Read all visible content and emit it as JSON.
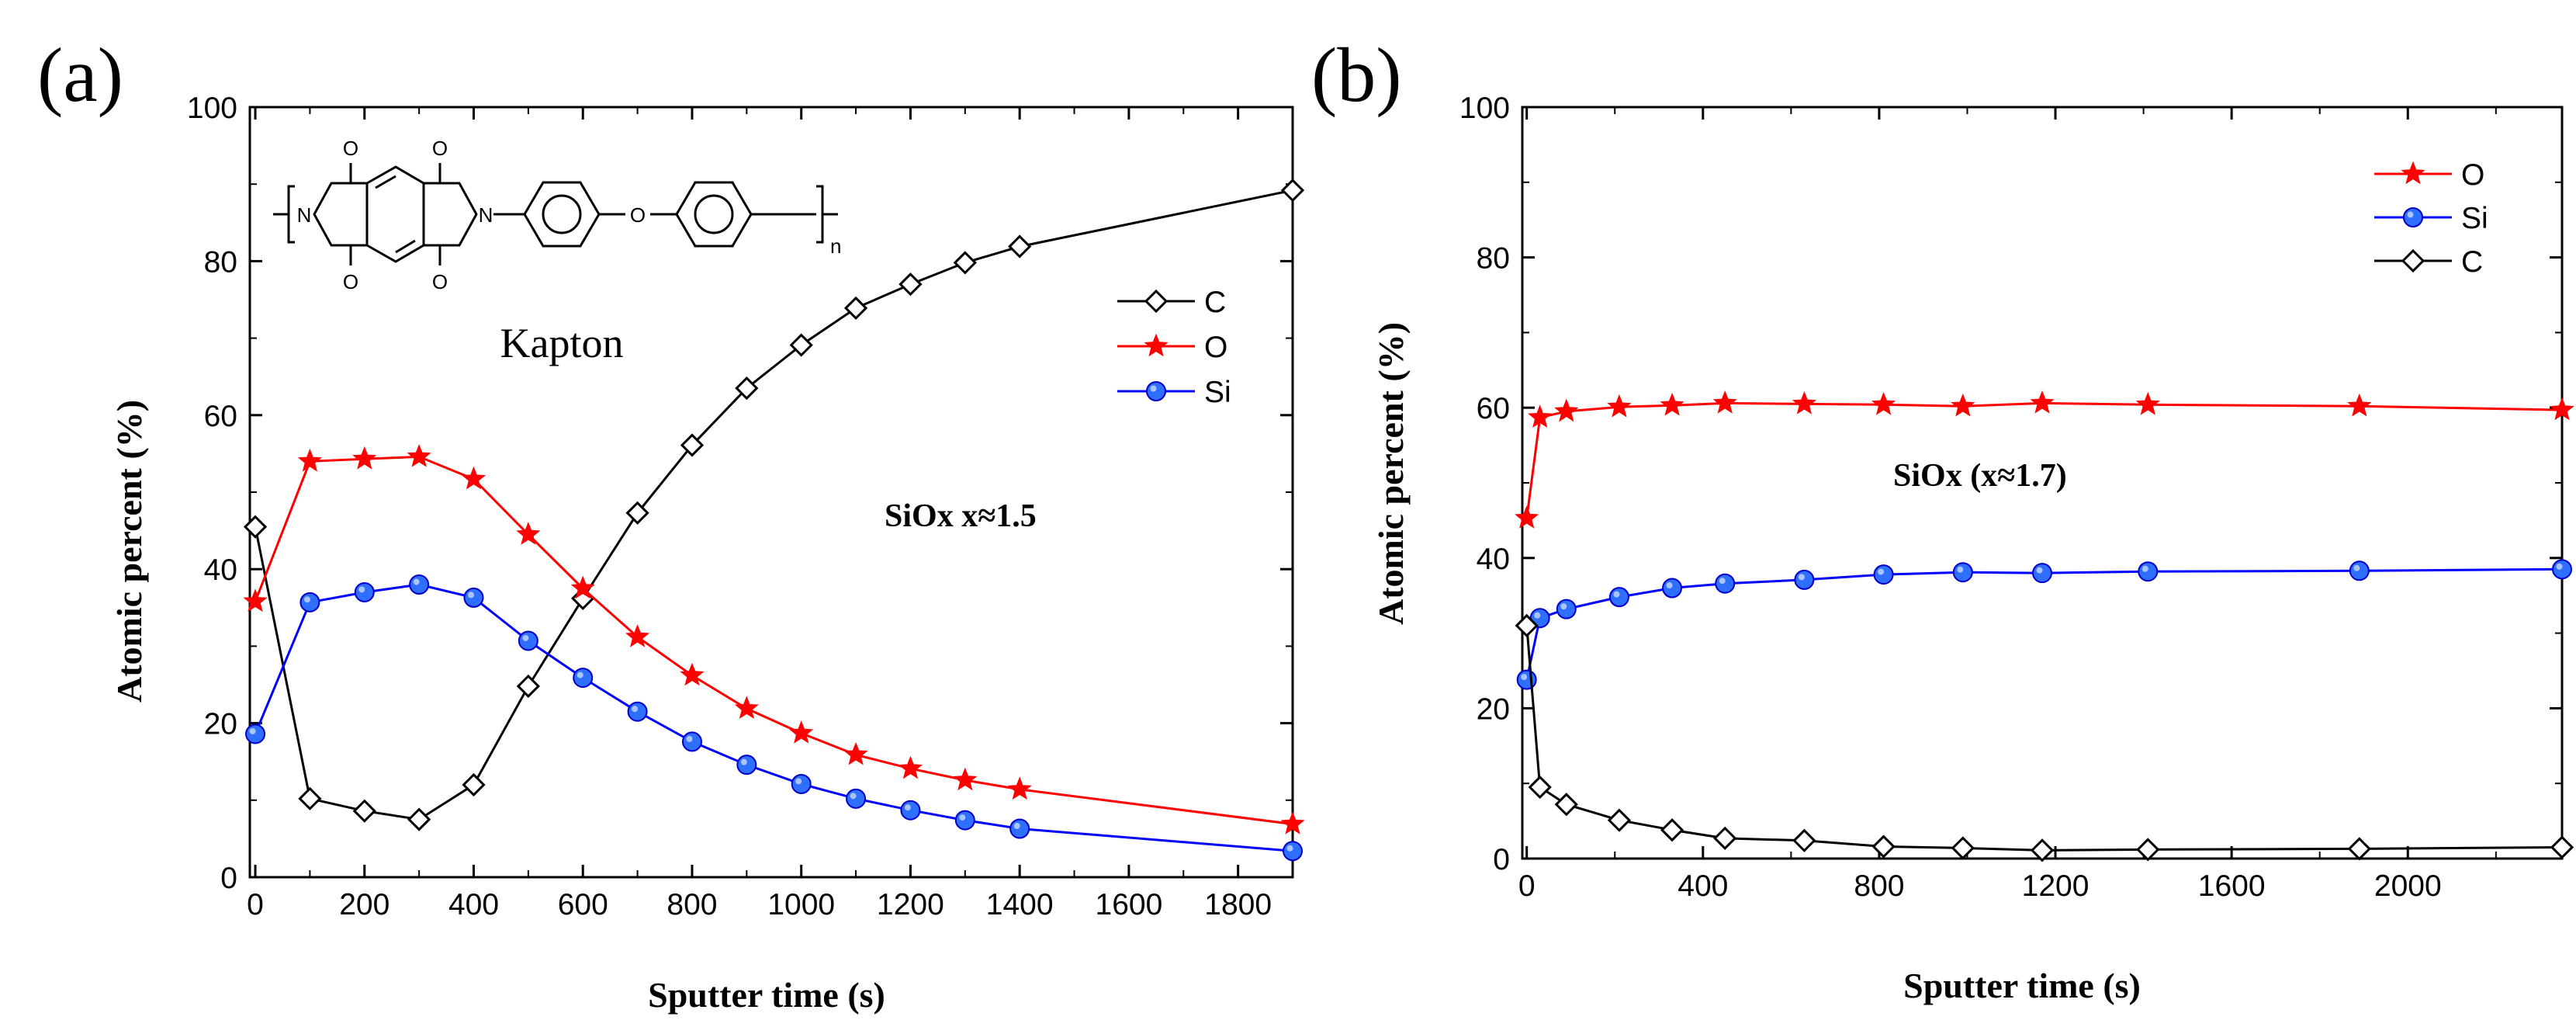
{
  "colors": {
    "O": "#ff0000",
    "Si": "#0000ff",
    "C": "#000000",
    "si_marker_fill": "#2f6fff"
  },
  "chart_data": [
    {
      "type": "line",
      "panel_label": "(a)",
      "xlabel": "Sputter time (s)",
      "ylabel": "Atomic percent (%)",
      "xlim": [
        -10,
        1900
      ],
      "ylim": [
        0,
        100
      ],
      "xticks": [
        "0",
        "200",
        "400",
        "600",
        "800",
        "1000",
        "1200",
        "1400",
        "1600",
        "1800"
      ],
      "yticks": [
        "0",
        "20",
        "40",
        "60",
        "80",
        "100"
      ],
      "annotation": "SiOx x≈1.5",
      "legend_position": "right-middle",
      "inset": {
        "label": "Kapton",
        "subscript": "n",
        "atoms": [
          "O",
          "O",
          "O",
          "O",
          "N",
          "N",
          "O"
        ]
      },
      "series": [
        {
          "name": "C",
          "marker": "diamond",
          "x": [
            0,
            100,
            200,
            300,
            400,
            500,
            600,
            700,
            800,
            900,
            1000,
            1100,
            1200,
            1300,
            1400,
            1900
          ],
          "y": [
            45.5,
            10.2,
            8.6,
            7.5,
            12.0,
            24.8,
            36.2,
            47.3,
            56.1,
            63.5,
            69.1,
            73.9,
            77.0,
            79.8,
            81.9,
            89.2
          ]
        },
        {
          "name": "O",
          "marker": "star",
          "x": [
            0,
            100,
            200,
            300,
            400,
            500,
            600,
            700,
            800,
            900,
            1000,
            1100,
            1200,
            1300,
            1400,
            1900
          ],
          "y": [
            35.8,
            54.0,
            54.3,
            54.6,
            51.7,
            44.5,
            37.5,
            31.2,
            26.2,
            21.9,
            18.7,
            15.9,
            14.1,
            12.6,
            11.4,
            6.9
          ]
        },
        {
          "name": "Si",
          "marker": "circle",
          "x": [
            0,
            100,
            200,
            300,
            400,
            500,
            600,
            700,
            800,
            900,
            1000,
            1100,
            1200,
            1300,
            1400,
            1900
          ],
          "y": [
            18.6,
            35.7,
            37.0,
            38.0,
            36.3,
            30.7,
            25.9,
            21.5,
            17.6,
            14.6,
            12.1,
            10.2,
            8.7,
            7.4,
            6.3,
            3.4
          ]
        }
      ]
    },
    {
      "type": "line",
      "panel_label": "(b)",
      "xlabel": "Sputter time (s)",
      "ylabel": "Atomic percent (%)",
      "xlim": [
        -10,
        2350
      ],
      "ylim": [
        0,
        100
      ],
      "xticks": [
        "0",
        "400",
        "800",
        "1200",
        "1600",
        "2000"
      ],
      "yticks": [
        "0",
        "20",
        "40",
        "60",
        "80",
        "100"
      ],
      "annotation": "SiOx (x≈1.7)",
      "legend_position": "top-right",
      "series": [
        {
          "name": "O",
          "marker": "star",
          "x": [
            0,
            30,
            90,
            210,
            330,
            450,
            630,
            810,
            990,
            1170,
            1410,
            1890,
            2350
          ],
          "y": [
            45.3,
            58.7,
            59.5,
            60.1,
            60.3,
            60.6,
            60.5,
            60.4,
            60.2,
            60.6,
            60.4,
            60.2,
            59.7
          ]
        },
        {
          "name": "Si",
          "marker": "circle",
          "x": [
            0,
            30,
            90,
            210,
            330,
            450,
            630,
            810,
            990,
            1170,
            1410,
            1890,
            2350
          ],
          "y": [
            23.8,
            32.0,
            33.2,
            34.8,
            36.0,
            36.6,
            37.1,
            37.8,
            38.1,
            38.0,
            38.2,
            38.3,
            38.5
          ]
        },
        {
          "name": "C",
          "marker": "diamond",
          "x": [
            0,
            30,
            90,
            210,
            330,
            450,
            630,
            810,
            990,
            1170,
            1410,
            1890,
            2350
          ],
          "y": [
            31.0,
            9.5,
            7.2,
            5.1,
            3.8,
            2.7,
            2.4,
            1.6,
            1.4,
            1.1,
            1.2,
            1.3,
            1.5
          ]
        }
      ]
    }
  ]
}
